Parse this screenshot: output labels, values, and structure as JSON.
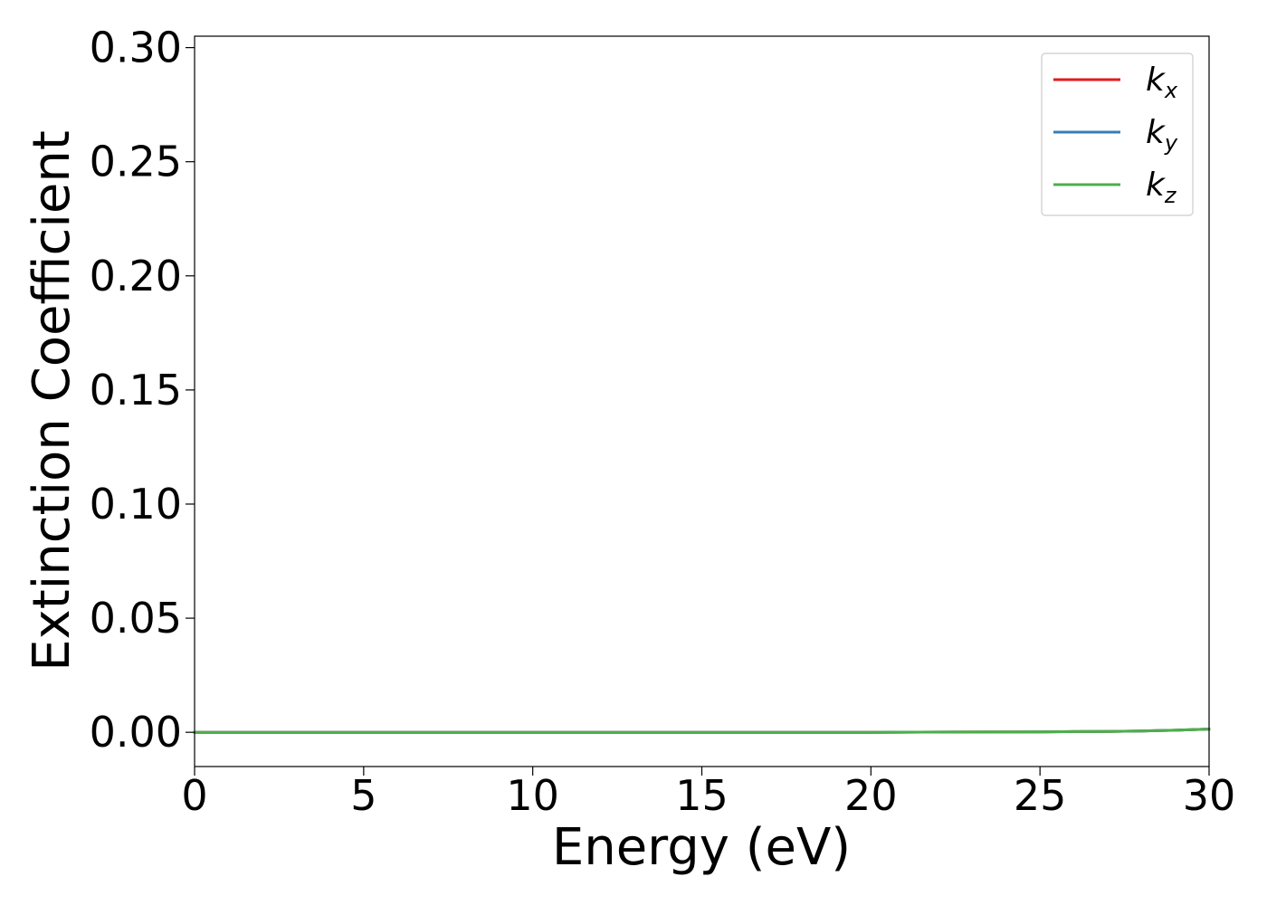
{
  "chart_data": {
    "type": "line",
    "title": "",
    "xlabel": "Energy (eV)",
    "ylabel": "Extinction Coefficient",
    "xlim": [
      0,
      30
    ],
    "ylim": [
      -0.015,
      0.305
    ],
    "xticks": [
      "0",
      "5",
      "10",
      "15",
      "20",
      "25",
      "30"
    ],
    "yticks": [
      "0.00",
      "0.05",
      "0.10",
      "0.15",
      "0.20",
      "0.25",
      "0.30"
    ],
    "grid": false,
    "legend_position": "top-right",
    "x": [
      0,
      2.5,
      5,
      7.5,
      10,
      12.5,
      15,
      17.5,
      20,
      22.5,
      25,
      26,
      27,
      28,
      29,
      30
    ],
    "series": [
      {
        "name": "k_x",
        "label_main": "k",
        "label_sub": "x",
        "color": "#e41a1c",
        "values": [
          0,
          0,
          0,
          0,
          0,
          0,
          0,
          0,
          0,
          0.0001,
          0.0002,
          0.0003,
          0.0004,
          0.0006,
          0.0009,
          0.0014
        ]
      },
      {
        "name": "k_y",
        "label_main": "k",
        "label_sub": "y",
        "color": "#377eb8",
        "values": [
          0,
          0,
          0,
          0,
          0,
          0,
          0,
          0,
          0,
          0.0001,
          0.0002,
          0.0003,
          0.0004,
          0.0006,
          0.0009,
          0.0014
        ]
      },
      {
        "name": "k_z",
        "label_main": "k",
        "label_sub": "z",
        "color": "#4daf4a",
        "values": [
          0,
          0,
          0,
          0,
          0,
          0,
          0,
          0,
          0,
          0.0001,
          0.0002,
          0.0003,
          0.0004,
          0.0006,
          0.0009,
          0.0014
        ]
      }
    ]
  }
}
